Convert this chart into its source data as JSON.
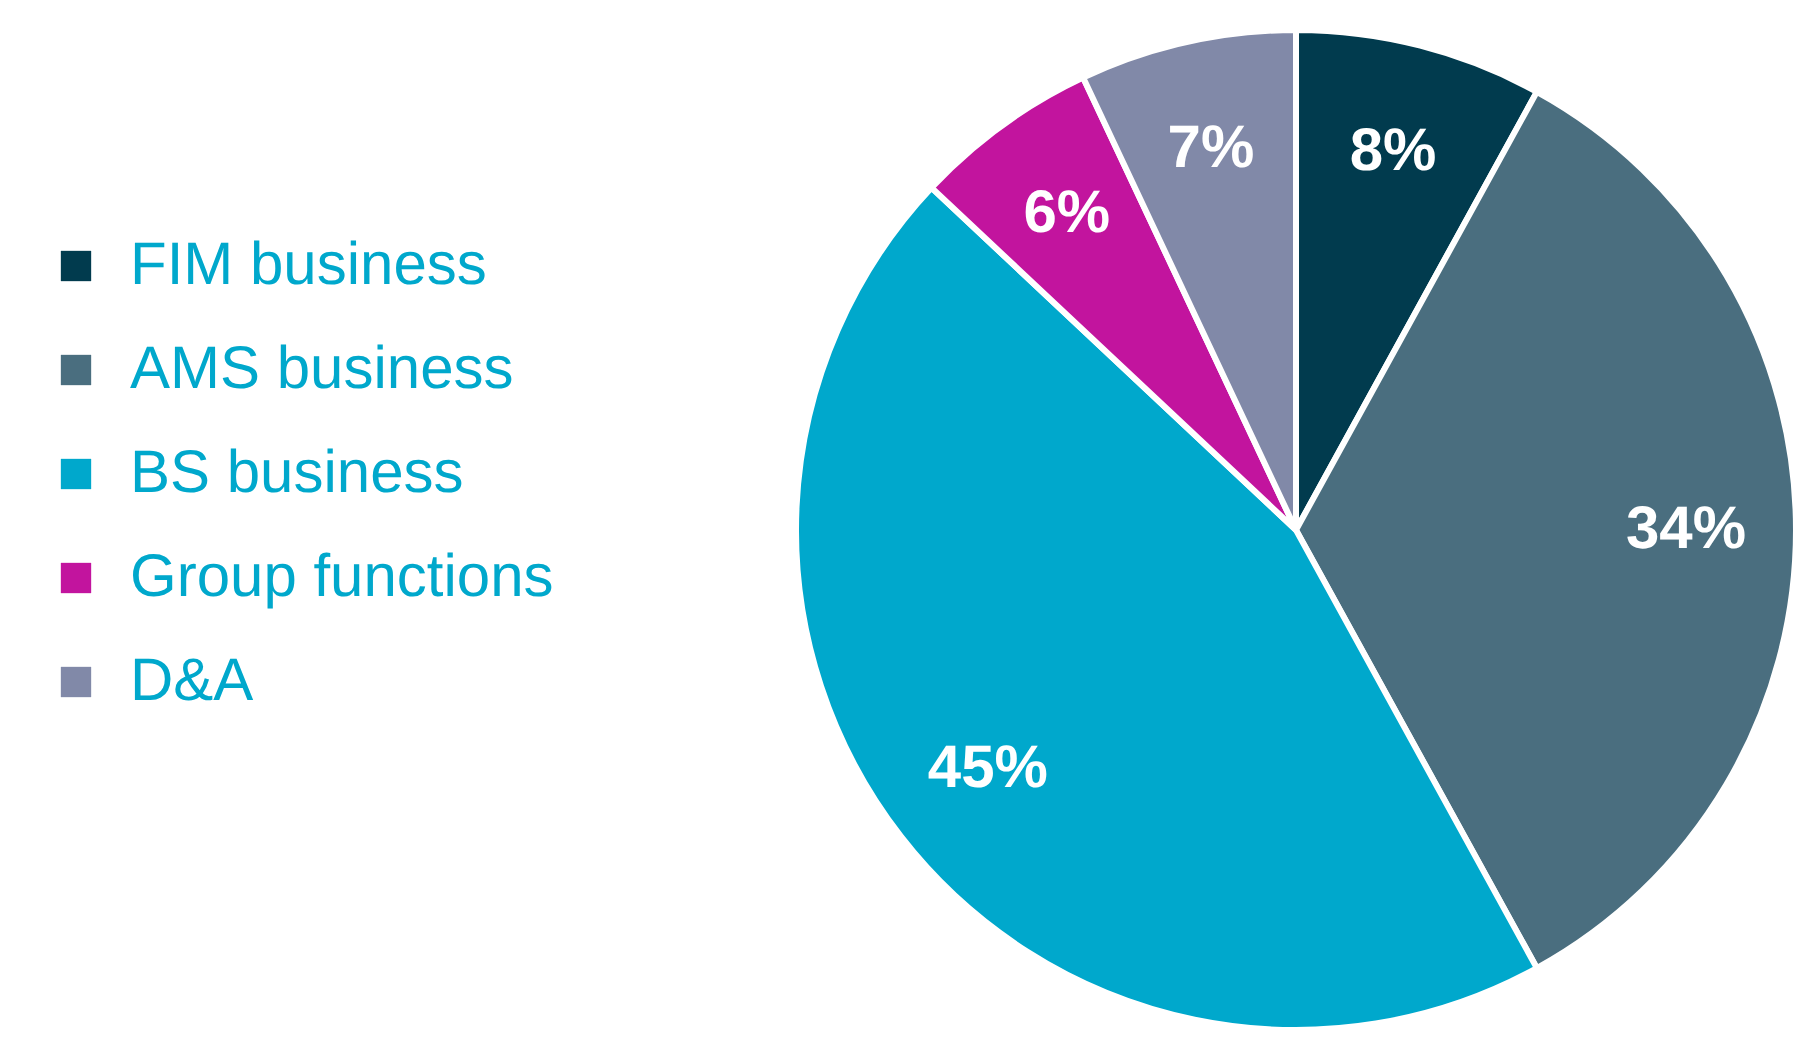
{
  "chart_data": {
    "type": "pie",
    "categories": [
      "FIM business",
      "AMS business",
      "BS business",
      "Group functions",
      "D&A"
    ],
    "values": [
      8,
      34,
      45,
      6,
      7
    ],
    "colors": [
      "#013b4e",
      "#4a6e7f",
      "#00a8cc",
      "#c2149e",
      "#8189a8"
    ],
    "value_labels": [
      "8%",
      "34%",
      "45%",
      "6%",
      "7%"
    ],
    "legend": "left"
  }
}
